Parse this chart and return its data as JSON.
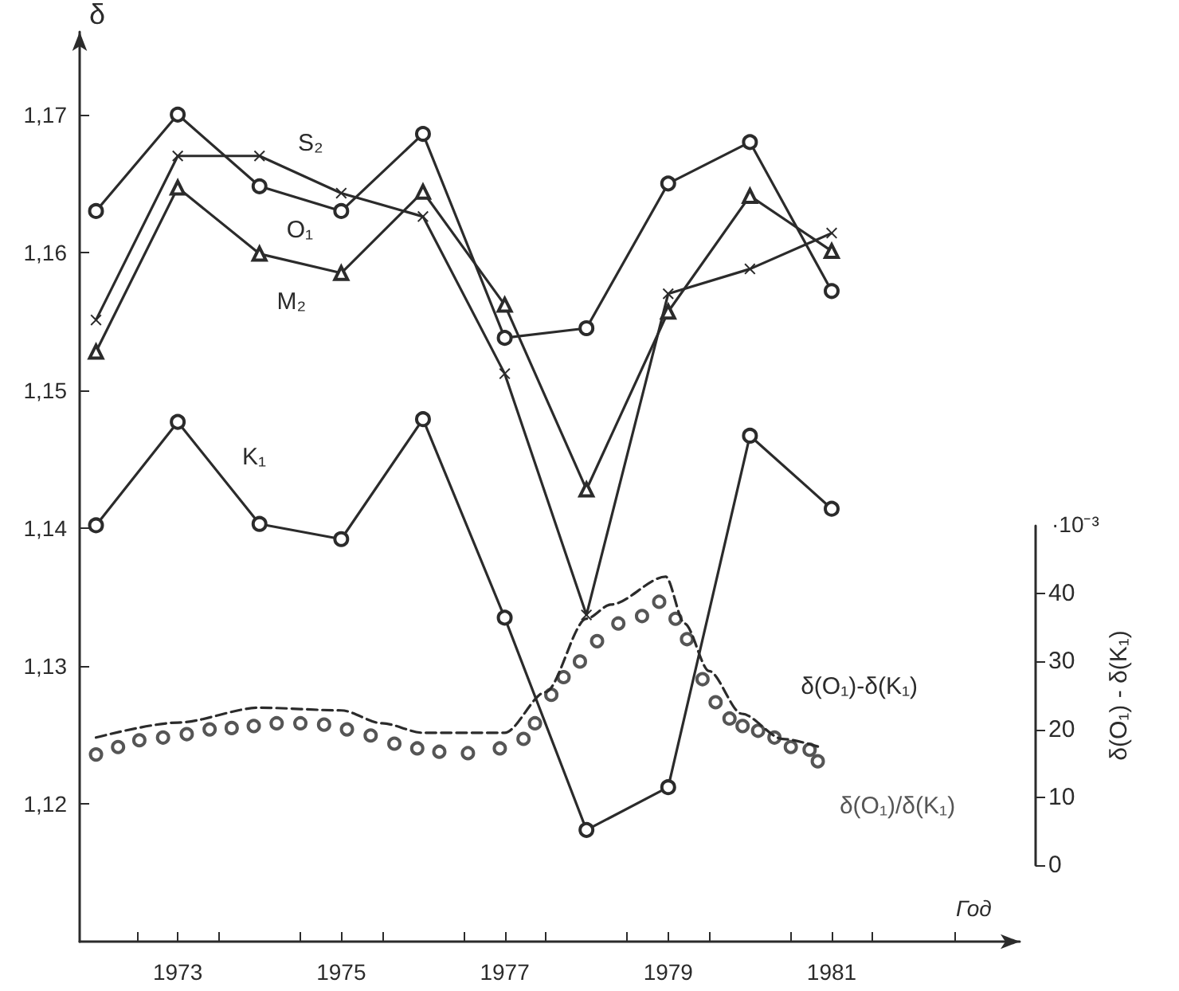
{
  "chart_data": {
    "type": "line",
    "xlabel": "Год",
    "ylabel": "δ",
    "y2label": "δ(O₁) - δ(K₁)",
    "annotations": [
      "·10⁻³"
    ],
    "x": [
      1972,
      1973,
      1974,
      1975,
      1976,
      1977,
      1978,
      1979,
      1980,
      1981
    ],
    "xlim": [
      1971.8,
      1983.3
    ],
    "xticks": [
      {
        "value": 1972.5,
        "label": null
      },
      {
        "value": 1973,
        "label": "1973"
      },
      {
        "value": 1973.5,
        "label": null
      },
      {
        "value": 1974.5,
        "label": null
      },
      {
        "value": 1975,
        "label": "1975"
      },
      {
        "value": 1975.5,
        "label": null
      },
      {
        "value": 1976.5,
        "label": null
      },
      {
        "value": 1977,
        "label": "1977"
      },
      {
        "value": 1977.5,
        "label": null
      },
      {
        "value": 1978.5,
        "label": null
      },
      {
        "value": 1979,
        "label": "1979"
      },
      {
        "value": 1979.5,
        "label": null
      },
      {
        "value": 1980.5,
        "label": null
      },
      {
        "value": 1981,
        "label": "1981"
      },
      {
        "value": 1981.5,
        "label": null
      },
      {
        "value": 1982.5,
        "label": null
      }
    ],
    "ylim": [
      1.11,
      1.176
    ],
    "yticks": [
      {
        "value": 1.12,
        "label": "1,12"
      },
      {
        "value": 1.13,
        "label": "1,13"
      },
      {
        "value": 1.14,
        "label": "1,14"
      },
      {
        "value": 1.15,
        "label": "1,15"
      },
      {
        "value": 1.16,
        "label": "1,16"
      },
      {
        "value": 1.17,
        "label": "1,17"
      }
    ],
    "y2lim": [
      0,
      50
    ],
    "y2ticks": [
      0,
      10,
      20,
      30,
      40
    ],
    "grid": false,
    "legend": false,
    "series": [
      {
        "name": "S₂",
        "color": "#2b2b2b",
        "marker": "cross",
        "line_style": "solid",
        "values": [
          1.1551,
          1.167,
          1.167,
          1.1643,
          1.1626,
          1.1512,
          1.1337,
          1.157,
          1.1588,
          1.1614
        ]
      },
      {
        "name": "O₁",
        "color": "#2b2b2b",
        "marker": "circle",
        "line_style": "solid",
        "values": [
          1.163,
          1.17,
          1.1648,
          1.163,
          1.1686,
          1.1538,
          1.1545,
          1.165,
          1.168,
          1.1572
        ]
      },
      {
        "name": "M₂",
        "color": "#2b2b2b",
        "marker": "triangle",
        "line_style": "solid",
        "values": [
          1.1528,
          1.1647,
          1.1599,
          1.1585,
          1.1644,
          1.1562,
          1.1428,
          1.1557,
          1.1641,
          1.1601
        ]
      },
      {
        "name": "K₁",
        "color": "#2b2b2b",
        "marker": "circle",
        "line_style": "solid",
        "values": [
          1.1402,
          1.1477,
          1.1403,
          1.1392,
          1.1479,
          1.1335,
          1.1181,
          1.1212,
          1.1467,
          1.1414
        ]
      },
      {
        "name": "δ(O₁)-δ(K₁)",
        "color": "#2b2b2b",
        "axis": "y2",
        "marker": "none",
        "line_style": "dashed",
        "x": [
          1972,
          1973,
          1974,
          1975,
          1975.5,
          1976,
          1977,
          1977.5,
          1978,
          1978.3,
          1978.97,
          1979.2,
          1979.5,
          1979.9,
          1980.4,
          1980.85
        ],
        "values": [
          18.8,
          21,
          23.2,
          22.8,
          20.9,
          19.5,
          19.5,
          25.5,
          36.3,
          38.4,
          42.5,
          35.6,
          28.6,
          22.3,
          18.6,
          17.4
        ]
      },
      {
        "name": "δ(O₁)/δ(K₁)",
        "type": "scatter",
        "color": "#2b2b2b",
        "axis": "y2",
        "marker": "circle",
        "x": [
          1972,
          1972.27,
          1972.53,
          1972.82,
          1973.11,
          1973.39,
          1973.66,
          1973.93,
          1974.21,
          1974.5,
          1974.79,
          1975.07,
          1975.36,
          1975.65,
          1975.93,
          1976.2,
          1976.55,
          1976.94,
          1977.23,
          1977.37,
          1977.57,
          1977.72,
          1977.92,
          1978.13,
          1978.39,
          1978.68,
          1978.89,
          1979.09,
          1979.23,
          1979.42,
          1979.58,
          1979.75,
          1979.91,
          1980.1,
          1980.3,
          1980.5,
          1980.73,
          1980.83
        ],
        "values": [
          16.3,
          17.4,
          18.4,
          18.8,
          19.3,
          20,
          20.2,
          20.5,
          20.9,
          20.9,
          20.7,
          20,
          19.1,
          17.9,
          17.2,
          16.7,
          16.5,
          17.2,
          18.6,
          20.9,
          25.1,
          27.7,
          30,
          33,
          35.6,
          36.7,
          38.8,
          36.3,
          33.3,
          27.4,
          24,
          21.6,
          20.5,
          19.8,
          18.8,
          17.4,
          17,
          15.3
        ]
      }
    ]
  }
}
